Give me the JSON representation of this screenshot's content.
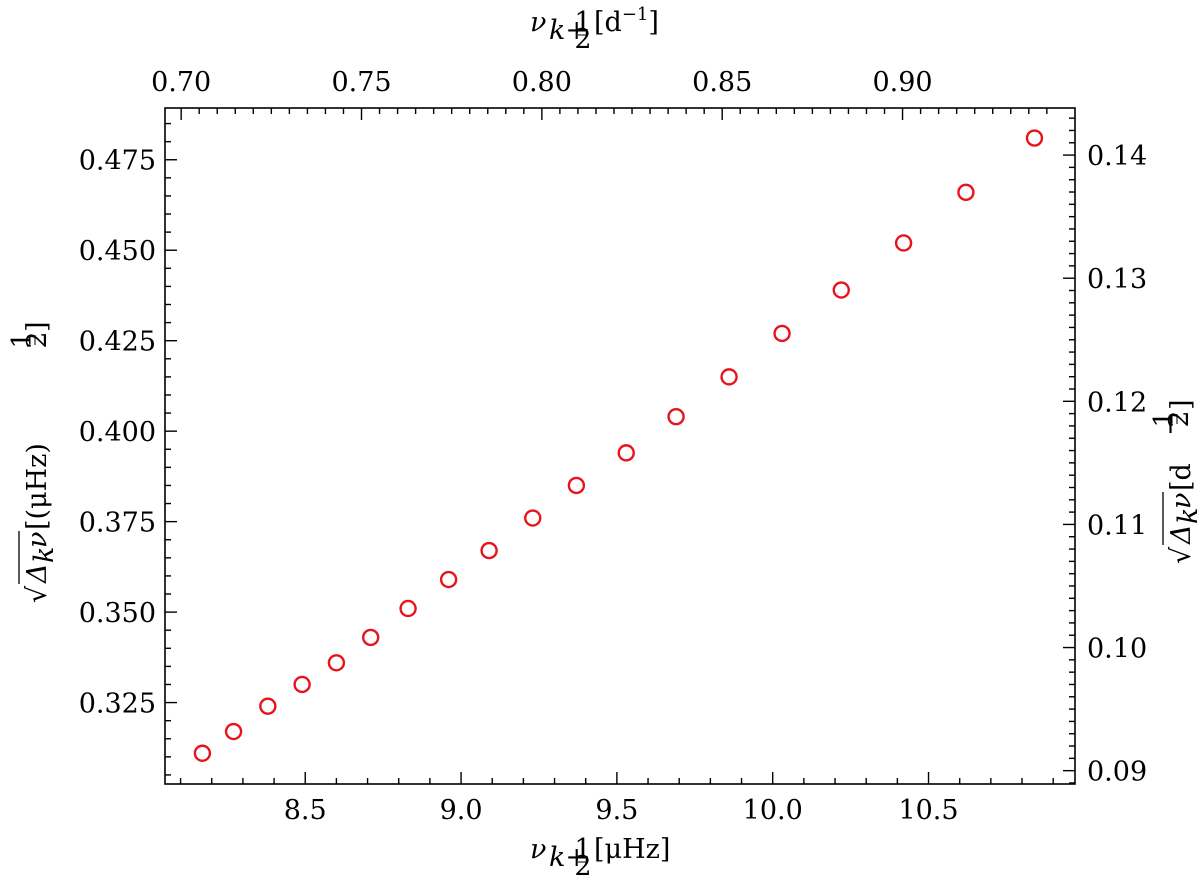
{
  "chart_data": {
    "type": "scatter",
    "series": [
      {
        "color": "#e8141c",
        "marker": "open-circle",
        "x": [
          8.17,
          8.27,
          8.38,
          8.49,
          8.6,
          8.71,
          8.83,
          8.96,
          9.09,
          9.23,
          9.37,
          9.53,
          9.69,
          9.86,
          10.03,
          10.22,
          10.42,
          10.62,
          10.84
        ],
        "y": [
          0.311,
          0.317,
          0.324,
          0.33,
          0.336,
          0.343,
          0.351,
          0.359,
          0.367,
          0.376,
          0.385,
          0.394,
          0.404,
          0.415,
          0.427,
          0.439,
          0.452,
          0.466,
          0.481
        ]
      }
    ],
    "xlim": [
      8.05,
      10.97
    ],
    "ylim": [
      0.3025,
      0.4893
    ],
    "x_ticks": [
      "8.5",
      "9.0",
      "9.5",
      "10.0",
      "10.5"
    ],
    "y_ticks": [
      "0.325",
      "0.350",
      "0.375",
      "0.400",
      "0.425",
      "0.450",
      "0.475"
    ],
    "x_top_ticks": [
      "0.70",
      "0.75",
      "0.80",
      "0.85",
      "0.90"
    ],
    "y_right_ticks": [
      "0.09",
      "0.10",
      "0.11",
      "0.12",
      "0.13",
      "0.14"
    ],
    "xlabel": "ν_{k+½} [μHz]",
    "ylabel": "√(Δ_k ν) [(μHz)^½]",
    "x2label": "ν_{k+½} [d⁻¹]",
    "y2label": "√(Δ_k ν) [d^−½]",
    "grid": false,
    "legend": "none"
  },
  "labels": {
    "x_main": "ν",
    "x_sub": "k+",
    "x_frac_num": "1",
    "x_frac_den": "2",
    "x_unit": " [μHz]",
    "x2_main": "ν",
    "x2_sub": "k+",
    "x2_frac_num": "1",
    "x2_frac_den": "2",
    "x2_unit_open": " [d",
    "x2_unit_exp": "−1",
    "x2_unit_close": "]",
    "y_sqrt": "√",
    "y_delta": "Δ",
    "y_sub": "k",
    "y_nu": "ν",
    "y_unit_open": " [(μHz)",
    "y_unit_exp_num": "1",
    "y_unit_exp_den": "2",
    "y_unit_close": "]",
    "y2_sqrt": "√",
    "y2_delta": "Δ",
    "y2_sub": "k",
    "y2_nu": "ν",
    "y2_unit_open": " [d",
    "y2_unit_exp_sign": "−",
    "y2_unit_exp_num": "1",
    "y2_unit_exp_den": "2",
    "y2_unit_close": "]"
  }
}
